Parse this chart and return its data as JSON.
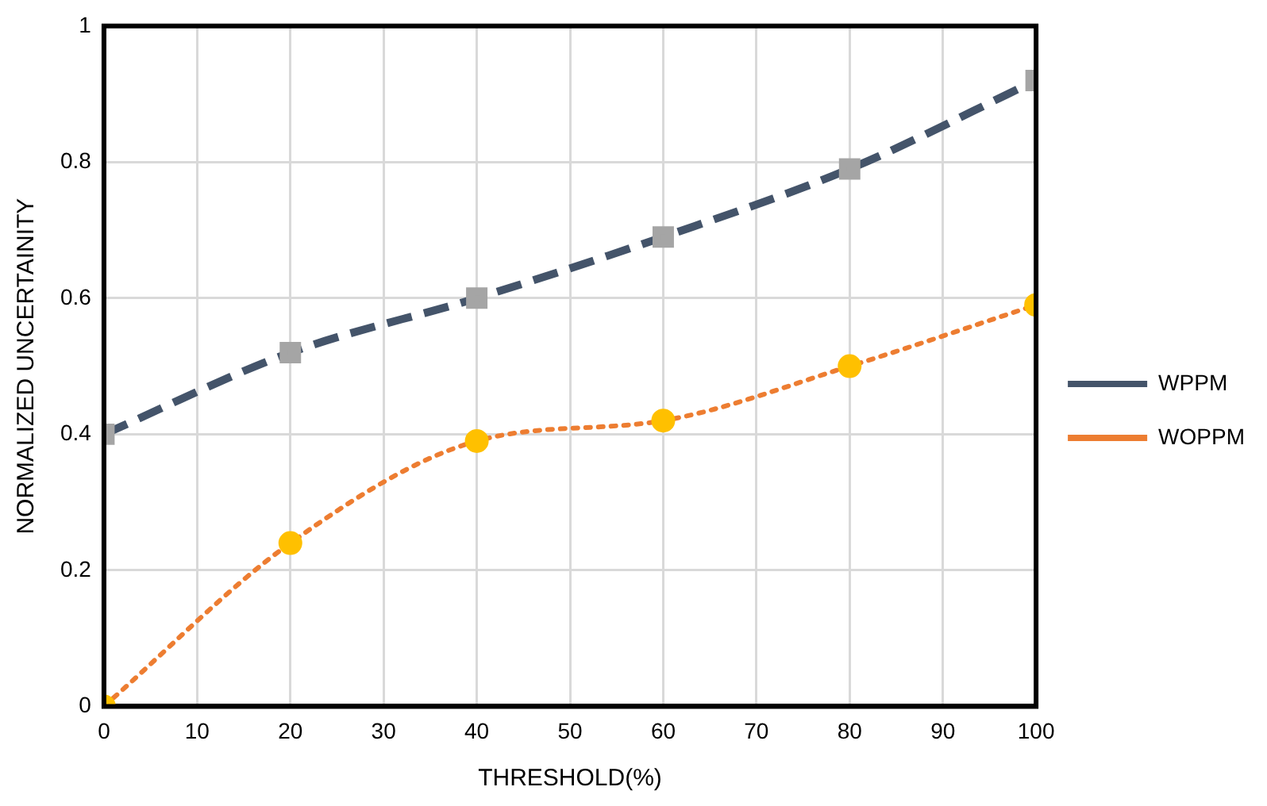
{
  "chart_data": {
    "type": "line",
    "xlabel": "THRESHOLD(%)",
    "ylabel": "NORMALIZED UNCERTAINITY",
    "x": [
      0,
      20,
      40,
      60,
      80,
      100
    ],
    "series": [
      {
        "name": "WPPM",
        "color": "#44546a",
        "colors": [
          "#a5a5a5",
          "#a5a5a5",
          "#a5a5a5",
          "#a5a5a5",
          "#a5a5a5",
          "#a5a5a5"
        ],
        "values": [
          0.4,
          0.52,
          0.6,
          0.69,
          0.79,
          0.92
        ],
        "marker": "square",
        "line_style": "dashed"
      },
      {
        "name": "WOPPM",
        "color": "#ed7d31",
        "colors": [
          "#ffc000",
          "#ffc000",
          "#ffc000",
          "#ffc000",
          "#ffc000",
          "#ffc000"
        ],
        "values": [
          0,
          0.24,
          0.39,
          0.42,
          0.5,
          0.59
        ],
        "marker": "circle",
        "line_style": "dotted"
      }
    ],
    "xlim": [
      0,
      100
    ],
    "xticks": [
      0,
      10,
      20,
      30,
      40,
      50,
      60,
      70,
      80,
      90,
      100
    ],
    "ylim": [
      0,
      1
    ],
    "yticks": [
      0,
      0.2,
      0.4,
      0.6,
      0.8,
      1
    ],
    "grid": true,
    "legend": "right"
  }
}
